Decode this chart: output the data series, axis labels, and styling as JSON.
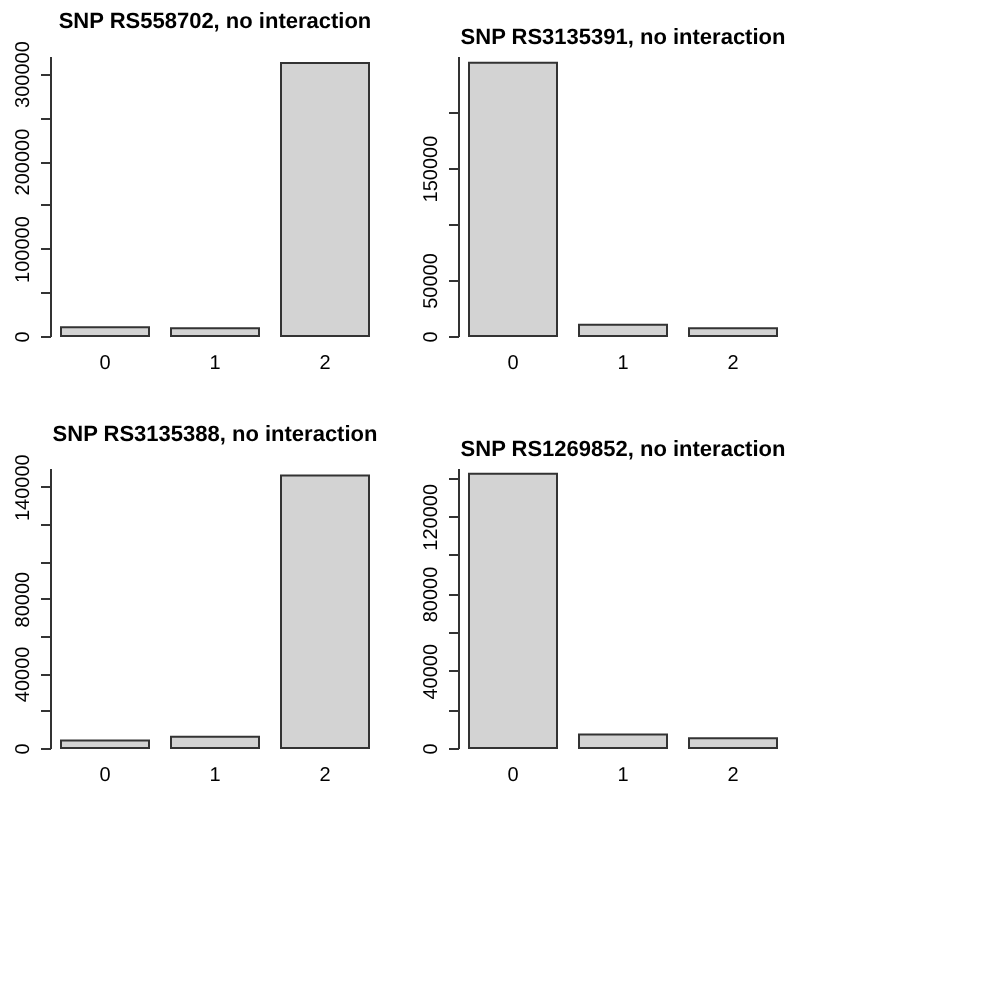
{
  "chart_data": [
    {
      "type": "bar",
      "title": "SNP RS558702, no interaction",
      "categories": [
        "0",
        "1",
        "2"
      ],
      "values": [
        10000,
        9000,
        312000
      ],
      "color": "#d3d3d3",
      "ylim": [
        0,
        320000
      ],
      "yticks": [
        0,
        {
          "value": 50000,
          "label": null
        },
        100000,
        {
          "value": 150000,
          "label": null
        },
        200000,
        {
          "value": 250000,
          "label": null
        },
        300000
      ],
      "grid": false
    },
    {
      "type": "bar",
      "title": "SNP RS3135391, no interaction",
      "categories": [
        "0",
        "1",
        "2"
      ],
      "values": [
        244000,
        10000,
        7000
      ],
      "color": "#d3d3d3",
      "ylim": [
        0,
        250000
      ],
      "yticks": [
        0,
        50000,
        {
          "value": 100000,
          "label": null
        },
        150000,
        {
          "value": 200000,
          "label": null
        }
      ],
      "grid": false
    },
    {
      "type": "bar",
      "title": "SNP RS3135388, no interaction",
      "categories": [
        "0",
        "1",
        "2"
      ],
      "values": [
        4000,
        6000,
        146000
      ],
      "color": "#d3d3d3",
      "ylim": [
        0,
        150000
      ],
      "yticks": [
        0,
        {
          "value": 20000,
          "label": null
        },
        40000,
        {
          "value": 60000,
          "label": null
        },
        80000,
        {
          "value": 100000,
          "label": null
        },
        {
          "value": 120000,
          "label": null
        },
        140000
      ],
      "grid": false
    },
    {
      "type": "bar",
      "title": "SNP RS1269852, no interaction",
      "categories": [
        "0",
        "1",
        "2"
      ],
      "values": [
        142000,
        7000,
        5000
      ],
      "color": "#d3d3d3",
      "ylim": [
        0,
        145000
      ],
      "yticks": [
        0,
        {
          "value": 20000,
          "label": null
        },
        40000,
        {
          "value": 60000,
          "label": null
        },
        80000,
        {
          "value": 100000,
          "label": null
        },
        120000,
        {
          "value": 140000,
          "label": null
        }
      ],
      "grid": false
    }
  ]
}
